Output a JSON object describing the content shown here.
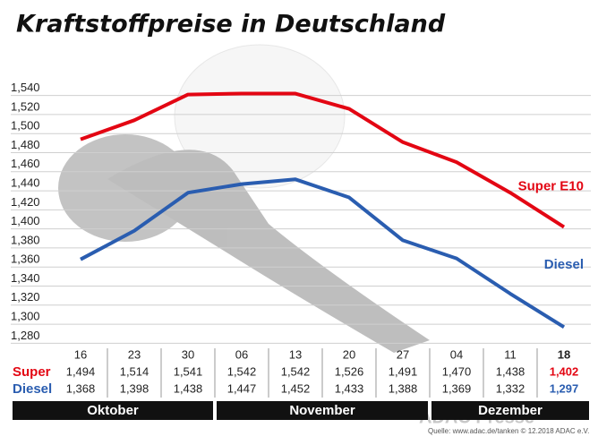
{
  "chart_data": {
    "type": "line",
    "title": "Kraftstoffpreise in Deutschland",
    "categories": [
      "16",
      "23",
      "30",
      "06",
      "13",
      "20",
      "27",
      "04",
      "11",
      "18"
    ],
    "series": [
      {
        "name": "Super E10",
        "row_label": "Super",
        "color": "#e30613",
        "values": [
          1.494,
          1.514,
          1.541,
          1.542,
          1.542,
          1.526,
          1.491,
          1.47,
          1.438,
          1.402
        ],
        "value_labels": [
          "1,494",
          "1,514",
          "1,541",
          "1,542",
          "1,542",
          "1,526",
          "1,491",
          "1,470",
          "1,438",
          "1,402"
        ]
      },
      {
        "name": "Diesel",
        "row_label": "Diesel",
        "color": "#2a5db0",
        "values": [
          1.368,
          1.398,
          1.438,
          1.447,
          1.452,
          1.433,
          1.388,
          1.369,
          1.332,
          1.297
        ],
        "value_labels": [
          "1,368",
          "1,398",
          "1,438",
          "1,447",
          "1,452",
          "1,433",
          "1,388",
          "1,369",
          "1,332",
          "1,297"
        ]
      }
    ],
    "ylim": [
      1.27,
      1.55
    ],
    "yticks": [
      {
        "value": 1.28,
        "label": "1,280"
      },
      {
        "value": 1.3,
        "label": "1,300"
      },
      {
        "value": 1.32,
        "label": "1,320"
      },
      {
        "value": 1.34,
        "label": "1,340"
      },
      {
        "value": 1.36,
        "label": "1,360"
      },
      {
        "value": 1.38,
        "label": "1,380"
      },
      {
        "value": 1.4,
        "label": "1,400"
      },
      {
        "value": 1.42,
        "label": "1,420"
      },
      {
        "value": 1.44,
        "label": "1,440"
      },
      {
        "value": 1.46,
        "label": "1,460"
      },
      {
        "value": 1.48,
        "label": "1,480"
      },
      {
        "value": 1.5,
        "label": "1,500"
      },
      {
        "value": 1.52,
        "label": "1,520"
      },
      {
        "value": 1.54,
        "label": "1,540"
      }
    ],
    "grid": true,
    "months": [
      {
        "label": "Oktober",
        "span": 3
      },
      {
        "label": "November",
        "span": 4
      },
      {
        "label": "Dezember",
        "span": 3
      }
    ],
    "source": "Quelle: www.adac.de/tanken   © 12.2018 ADAC e.V.",
    "watermark": "ADAC Presse"
  }
}
